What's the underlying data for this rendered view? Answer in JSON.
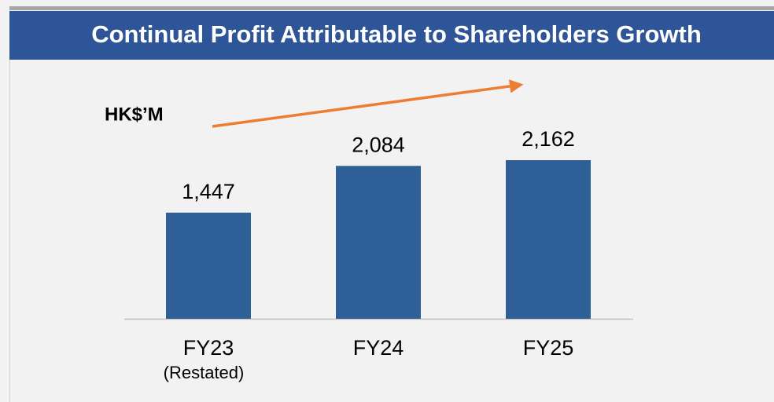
{
  "chart_data": {
    "type": "bar",
    "title": "Continual Profit Attributable to Shareholders Growth",
    "unit_label": "HK$’M",
    "categories": [
      "FY23",
      "FY24",
      "FY25"
    ],
    "category_sublabels": [
      "(Restated)",
      null,
      null
    ],
    "values": [
      1447,
      2084,
      2162
    ],
    "value_labels": [
      "1,447",
      "2,084",
      "2,162"
    ],
    "color": "#2f5f97"
  }
}
